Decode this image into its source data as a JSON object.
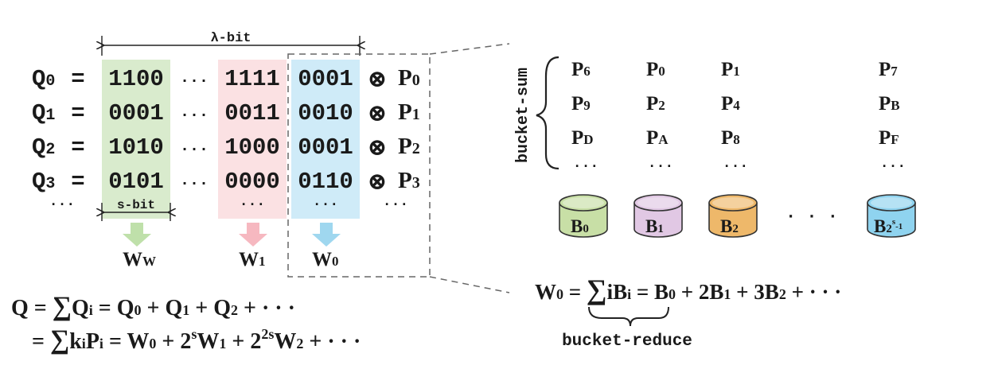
{
  "lambda_bit_label": "λ-bit",
  "s_bit_label": "s-bit",
  "rows": [
    {
      "q": "Q",
      "q_sub": "0",
      "eq": "=",
      "w_w": "1100",
      "dots": "···",
      "w_1": "1111",
      "w_0": "0001",
      "otimes": "⊗",
      "p": "P",
      "p_sub": "0"
    },
    {
      "q": "Q",
      "q_sub": "1",
      "eq": "=",
      "w_w": "0001",
      "dots": "···",
      "w_1": "0011",
      "w_0": "0010",
      "otimes": "⊗",
      "p": "P",
      "p_sub": "1"
    },
    {
      "q": "Q",
      "q_sub": "2",
      "eq": "=",
      "w_w": "1010",
      "dots": "···",
      "w_1": "1000",
      "w_0": "0001",
      "otimes": "⊗",
      "p": "P",
      "p_sub": "2"
    },
    {
      "q": "Q",
      "q_sub": "3",
      "eq": "=",
      "w_w": "0101",
      "dots": "···",
      "w_1": "0000",
      "w_0": "0110",
      "otimes": "⊗",
      "p": "P",
      "p_sub": "3"
    }
  ],
  "ellipsis_row": {
    "left": "···",
    "w_1": "···",
    "w_0": "···",
    "right": "···"
  },
  "window_labels": [
    {
      "main": "W",
      "sub": "W"
    },
    {
      "main": "W",
      "sub": "1"
    },
    {
      "main": "W",
      "sub": "0"
    }
  ],
  "bucket_sum_label": "bucket-sum",
  "bucket_points": [
    [
      {
        "m": "P",
        "s": "6"
      },
      {
        "m": "P",
        "s": "0"
      },
      {
        "m": "P",
        "s": "1"
      },
      {
        "m": "P",
        "s": "7"
      }
    ],
    [
      {
        "m": "P",
        "s": "9"
      },
      {
        "m": "P",
        "s": "2"
      },
      {
        "m": "P",
        "s": "4"
      },
      {
        "m": "P",
        "s": "B"
      }
    ],
    [
      {
        "m": "P",
        "s": "D"
      },
      {
        "m": "P",
        "s": "A"
      },
      {
        "m": "P",
        "s": "8"
      },
      {
        "m": "P",
        "s": "F"
      }
    ]
  ],
  "bucket_col_dots": [
    "···",
    "···",
    "···",
    "···"
  ],
  "buckets": [
    {
      "m": "B",
      "s": "0",
      "color": "#c8dfa6"
    },
    {
      "m": "B",
      "s": "1",
      "color": "#e1c8e4"
    },
    {
      "m": "B",
      "s": "2",
      "color": "#eeb86a"
    },
    {
      "m": "B",
      "s": "2",
      "sup": "s",
      "tail": "-1",
      "color": "#8fd3ef"
    }
  ],
  "bucket_gap_dots": "· · ·",
  "colors": {
    "green_column": "#d9ebcd",
    "pink_column": "#fbe1e3",
    "blue_column": "#cfebf8",
    "green_arrow": "#bfe0aa",
    "pink_arrow": "#f6b8c0",
    "blue_arrow": "#9fd7ef"
  },
  "formula_w0": {
    "lhs": "W",
    "lhs_sub": "0",
    "eq": "=",
    "sum": "∑",
    "term": "iB",
    "term_sub": "i",
    "rhs": "= B",
    "b0": "0",
    "p1": "+ 2B",
    "b1": "1",
    "p2": "+ 3B",
    "b2": "2",
    "tail": "+ · · ·"
  },
  "bucket_reduce_label": "bucket-reduce",
  "formula_q1": {
    "lhs": "Q = ",
    "sum": "∑",
    "term": "Q",
    "term_sub": "i",
    "mid": " = Q",
    "s0": "0",
    "p1": " + Q",
    "s1": "1",
    "p2": " + Q",
    "s2": "2",
    "tail": " + · · ·"
  },
  "formula_q2": {
    "eq": "= ",
    "sum": "∑",
    "term": "k",
    "k_sub": "i",
    "p": "P",
    "p_sub": "i",
    "mid": " = W",
    "w0": "0",
    "p1": " + 2",
    "sup1": "s",
    "w1": "W",
    "w1_sub": "1",
    "p2": " + 2",
    "sup2": "2s",
    "w2": "W",
    "w2_sub": "2",
    "tail": " + · · ·"
  }
}
